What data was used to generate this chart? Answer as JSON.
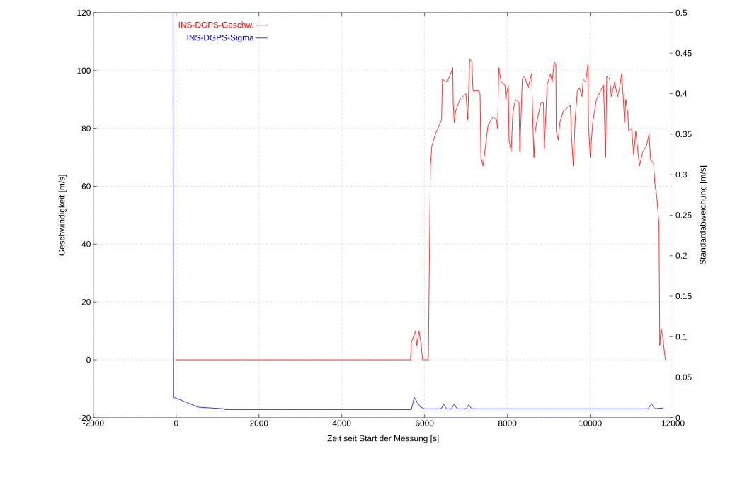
{
  "chart_data": {
    "type": "line",
    "xlabel": "Zeit seit Start der Messung [s]",
    "ylabel": "Geschwindigkeit [m/s]",
    "y2label": "Standardabweichung [m/s]",
    "xlim": [
      -2000,
      12000
    ],
    "xticks": [
      -2000,
      0,
      2000,
      4000,
      6000,
      8000,
      10000,
      12000
    ],
    "ylim": [
      -20,
      120
    ],
    "yticks": [
      -20,
      0,
      20,
      40,
      60,
      80,
      100,
      120
    ],
    "y2lim": [
      0,
      0.5
    ],
    "y2ticks": [
      0,
      0.05,
      0.1,
      0.15,
      0.2,
      0.25,
      0.3,
      0.35,
      0.4,
      0.45,
      0.5
    ],
    "grid": true,
    "legend": "top left",
    "line_style": "solid",
    "marker": "none",
    "series": [
      {
        "name": "INS-DGPS-Geschw.",
        "color": "#ff0000",
        "axis": "y",
        "x": [
          -20,
          5660,
          5680,
          5780,
          5810,
          5865,
          5920,
          5950,
          6090,
          6140,
          6175,
          6260,
          6350,
          6410,
          6430,
          6545,
          6630,
          6680,
          6690,
          6715,
          6750,
          6850,
          7000,
          7040,
          7090,
          7140,
          7170,
          7310,
          7340,
          7360,
          7410,
          7480,
          7530,
          7650,
          7735,
          7765,
          7790,
          7850,
          7940,
          7960,
          8020,
          8040,
          8090,
          8130,
          8190,
          8280,
          8300,
          8360,
          8415,
          8500,
          8585,
          8620,
          8640,
          8670,
          8720,
          8810,
          8870,
          8890,
          8960,
          9040,
          9080,
          9130,
          9170,
          9180,
          9230,
          9265,
          9350,
          9520,
          9550,
          9590,
          9640,
          9690,
          9740,
          9800,
          9830,
          9890,
          9945,
          9960,
          10000,
          10060,
          10150,
          10250,
          10320,
          10340,
          10370,
          10400,
          10470,
          10510,
          10590,
          10660,
          10710,
          10760,
          10800,
          10830,
          10860,
          10910,
          10930,
          11000,
          11050,
          11100,
          11190,
          11270,
          11360,
          11420,
          11460,
          11530,
          11560,
          11610,
          11660,
          11680,
          11710,
          11750,
          11815
        ],
        "values": [
          0,
          0,
          6,
          10,
          5,
          10,
          5,
          0,
          0,
          67,
          74,
          78,
          81,
          83,
          97,
          96,
          99,
          101,
          89,
          82,
          86,
          90,
          92,
          83,
          104,
          103,
          93,
          93,
          92,
          70,
          67,
          75,
          81,
          84,
          83,
          80,
          101,
          96,
          95,
          90,
          95,
          76,
          72,
          85,
          90,
          89,
          72,
          97,
          98,
          94,
          99,
          79,
          70,
          79,
          83,
          89,
          89,
          73,
          95,
          99,
          96,
          103,
          102,
          79,
          76,
          82,
          86,
          88,
          77,
          67,
          84,
          93,
          94,
          91,
          97,
          96,
          102,
          81,
          70,
          82,
          90,
          93,
          95,
          86,
          70,
          98,
          97,
          91,
          96,
          91,
          94,
          99,
          90,
          82,
          90,
          85,
          79,
          80,
          71,
          79,
          67,
          72,
          74,
          78,
          69,
          68,
          61,
          56,
          47,
          5,
          11,
          8,
          0
        ]
      },
      {
        "name": "INS-DGPS-Sigma",
        "color": "#0000ff",
        "axis": "y2",
        "x": [
          -80,
          -60,
          50,
          530,
          1160,
          1170,
          5680,
          5750,
          5900,
          6000,
          6400,
          6460,
          6520,
          6650,
          6715,
          6780,
          7000,
          7070,
          7130,
          8000,
          11400,
          11480,
          11560,
          11770
        ],
        "values": [
          0.5,
          0.025,
          0.023,
          0.013,
          0.011,
          0.01,
          0.01,
          0.025,
          0.013,
          0.011,
          0.011,
          0.017,
          0.011,
          0.011,
          0.017,
          0.011,
          0.011,
          0.016,
          0.011,
          0.011,
          0.011,
          0.017,
          0.011,
          0.012
        ]
      }
    ]
  }
}
